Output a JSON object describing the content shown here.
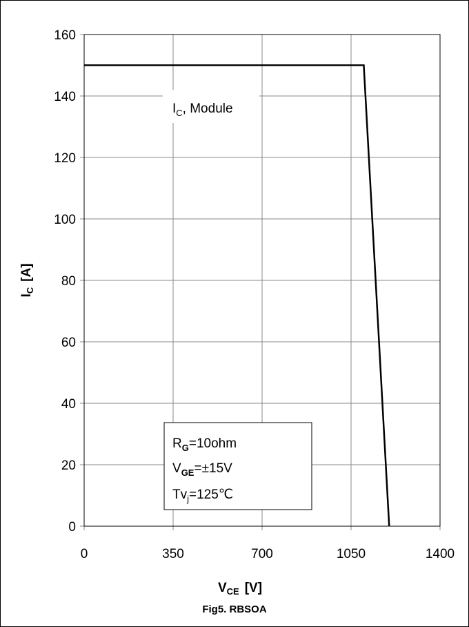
{
  "chart_data": {
    "type": "line",
    "caption": "Fig5. RBSOA",
    "x_axis": {
      "label_main": "V",
      "label_sub": "CE",
      "label_unit": "[V]",
      "range": [
        0,
        1400
      ],
      "ticks": [
        0,
        350,
        700,
        1050,
        1400
      ]
    },
    "y_axis": {
      "label_main": "I",
      "label_sub": "C",
      "label_unit": "[A]",
      "range": [
        0,
        160
      ],
      "ticks": [
        0,
        20,
        40,
        60,
        80,
        100,
        120,
        140,
        160
      ]
    },
    "grid": true,
    "series": [
      {
        "name": "IC, Module",
        "points": [
          [
            0,
            150
          ],
          [
            1100,
            150
          ],
          [
            1200,
            0
          ]
        ],
        "color": "#000000"
      }
    ],
    "series_label": {
      "main": "I",
      "sub": "C",
      "rest": ", Module"
    },
    "conditions": [
      {
        "main": "R",
        "sub": "G",
        "rest": "=10ohm"
      },
      {
        "main": "V",
        "sub": "GE",
        "rest": "=±15V"
      },
      {
        "main": "Tv",
        "sub": "j",
        "rest": "=125℃"
      }
    ]
  }
}
